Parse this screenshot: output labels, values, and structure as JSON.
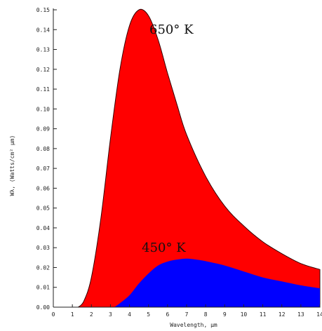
{
  "chart_data": {
    "type": "area",
    "xlabel": "Wavelength, µm",
    "ylabel": "Wλ, (Watts/cm² µm)",
    "xlim": [
      0,
      14
    ],
    "ylim": [
      0,
      0.15
    ],
    "x_ticks": [
      "0",
      "1",
      "2",
      "3",
      "4",
      "5",
      "6",
      "7",
      "8",
      "9",
      "10",
      "11",
      "12",
      "13",
      "14"
    ],
    "y_ticks": [
      "0.00",
      "0.01",
      "0.02",
      "0.03",
      "0.04",
      "0.05",
      "0.06",
      "0.07",
      "0.08",
      "0.09",
      "0.10",
      "0.11",
      "0.12",
      "0.13",
      "0.14",
      "0.15"
    ],
    "series": [
      {
        "name": "650° K",
        "color": "#ff0000",
        "x": [
          1.3,
          1.6,
          2.0,
          2.5,
          3.0,
          3.5,
          4.0,
          4.5,
          5.0,
          5.5,
          6.0,
          6.5,
          7.0,
          8.0,
          9.0,
          10.0,
          11.0,
          12.0,
          13.0,
          14.0
        ],
        "y": [
          0.0,
          0.003,
          0.015,
          0.045,
          0.085,
          0.12,
          0.142,
          0.15,
          0.147,
          0.135,
          0.118,
          0.102,
          0.087,
          0.066,
          0.051,
          0.041,
          0.033,
          0.027,
          0.022,
          0.019
        ]
      },
      {
        "name": "450° K",
        "color": "#0000ff",
        "x": [
          3.2,
          3.5,
          4.0,
          4.5,
          5.0,
          5.5,
          6.0,
          6.5,
          7.0,
          7.5,
          8.0,
          9.0,
          10.0,
          11.0,
          12.0,
          13.0,
          14.0
        ],
        "y": [
          0.0,
          0.002,
          0.006,
          0.012,
          0.017,
          0.021,
          0.023,
          0.024,
          0.0245,
          0.024,
          0.0232,
          0.021,
          0.018,
          0.015,
          0.013,
          0.011,
          0.0095
        ]
      }
    ],
    "annotations": [
      {
        "text": "650° K",
        "x": 6.2,
        "y": 0.138
      },
      {
        "text": "450° K",
        "x": 5.8,
        "y": 0.028
      }
    ],
    "grid": false,
    "legend": "none"
  }
}
